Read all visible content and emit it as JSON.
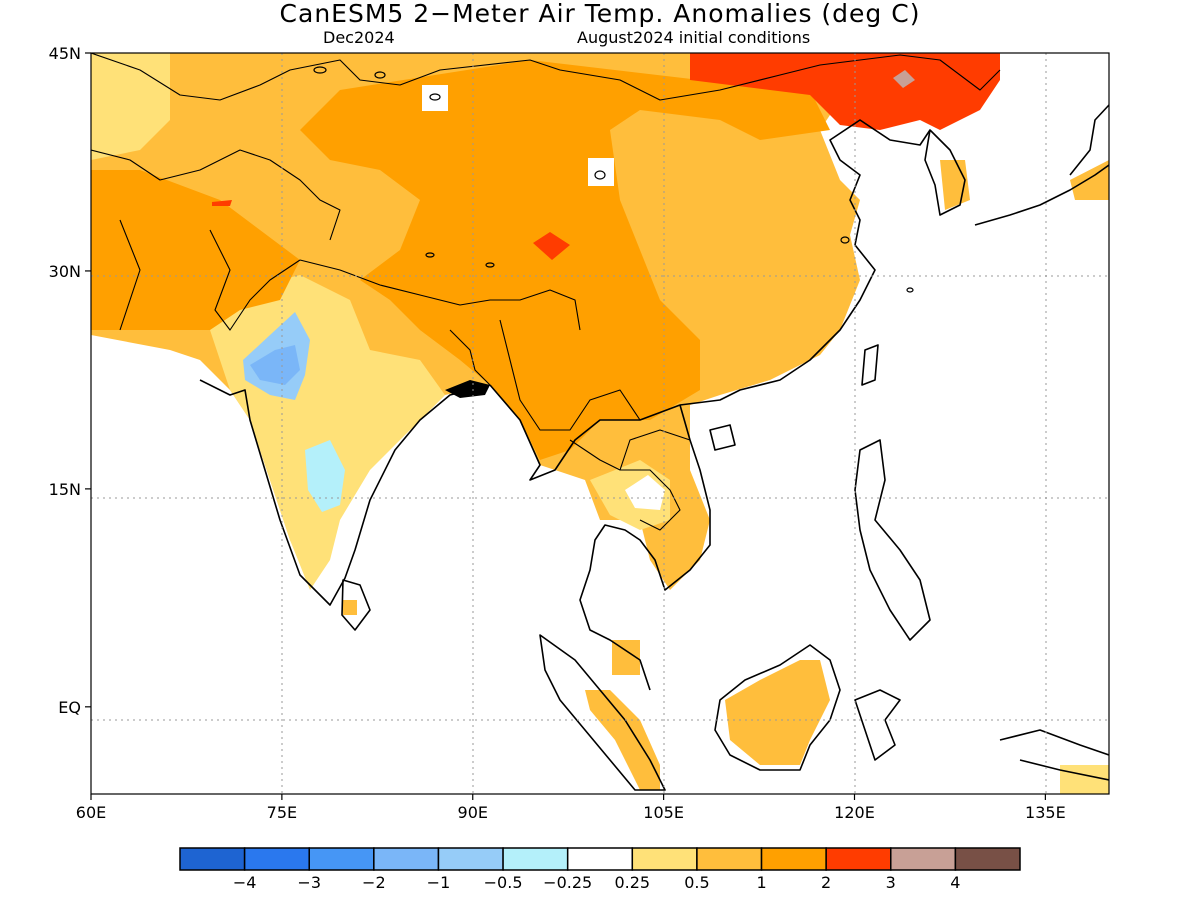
{
  "title": "CanESM5 2−Meter Air Temp. Anomalies (deg C)",
  "valid_month": "Dec2024",
  "init_conditions": "August2024 initial conditions",
  "map": {
    "lon_range": [
      60,
      140
    ],
    "lat_range": [
      -6,
      45
    ],
    "lat_ticks": [
      {
        "value": 45,
        "label": "45N"
      },
      {
        "value": 30,
        "label": "30N"
      },
      {
        "value": 15,
        "label": "15N"
      },
      {
        "value": 0,
        "label": "EQ"
      }
    ],
    "lon_ticks": [
      {
        "value": 60,
        "label": "60E"
      },
      {
        "value": 75,
        "label": "75E"
      },
      {
        "value": 90,
        "label": "90E"
      },
      {
        "value": 105,
        "label": "105E"
      },
      {
        "value": 120,
        "label": "120E"
      },
      {
        "value": 135,
        "label": "135E"
      }
    ],
    "grid": true
  },
  "colorbar": {
    "labels": [
      "−4",
      "−3",
      "−2",
      "−1",
      "−0.5",
      "−0.25",
      "0.25",
      "0.5",
      "1",
      "2",
      "3",
      "4"
    ],
    "colors": [
      "#1e64d2",
      "#2a78ee",
      "#4696f5",
      "#7ab6f8",
      "#96ccf8",
      "#b4f0fa",
      "#ffffff",
      "#ffe178",
      "#ffbe3c",
      "#ffa000",
      "#ff3c00",
      "#c8a096",
      "#785046"
    ]
  }
}
